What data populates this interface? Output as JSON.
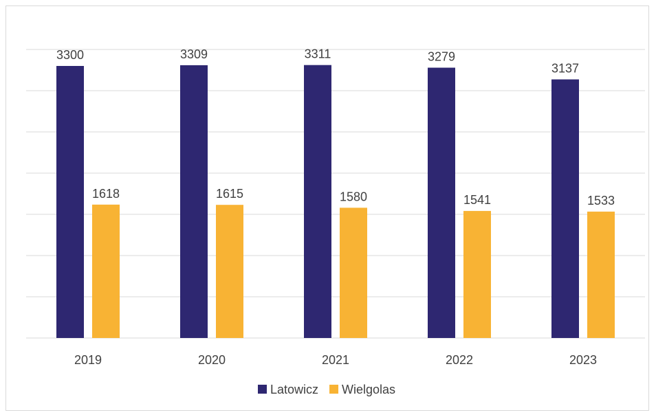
{
  "chart_data": {
    "type": "bar",
    "title": "",
    "xlabel": "",
    "ylabel": "",
    "categories": [
      "2019",
      "2020",
      "2021",
      "2022",
      "2023"
    ],
    "series": [
      {
        "name": "Latowicz",
        "values": [
          3300,
          3309,
          3311,
          3279,
          3137
        ],
        "color": "#2e2771"
      },
      {
        "name": "Wielgolas",
        "values": [
          1618,
          1615,
          1580,
          1541,
          1533
        ],
        "color": "#f8b334"
      }
    ],
    "ylim": [
      0,
      3500
    ],
    "ytick_step": 500,
    "show_y_tick_labels": false,
    "grid": true,
    "gridline_color": "#d9d9d9",
    "legend_position": "bottom"
  }
}
